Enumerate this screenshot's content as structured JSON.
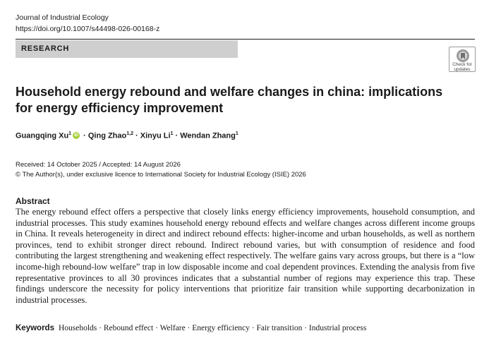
{
  "header": {
    "journal": "Journal of Industrial Ecology",
    "doi": "https://doi.org/10.1007/s44498-026-00168-z",
    "section_label": "RESEARCH",
    "check_updates_line1": "Check for",
    "check_updates_line2": "updates"
  },
  "article": {
    "title": "Household energy rebound and welfare changes in china: implications for energy efficiency improvement",
    "authors": [
      {
        "name": "Guangqing Xu",
        "affiliation": "1"
      },
      {
        "name": "Qing Zhao",
        "affiliation": "1,2"
      },
      {
        "name": "Xinyu Li",
        "affiliation": "1"
      },
      {
        "name": "Wendan Zhang",
        "affiliation": "1"
      }
    ],
    "author_separator": " · ",
    "dates": "Received: 14 October 2025 / Accepted: 14 August 2026",
    "copyright": "© The Author(s), under exclusive licence to International Society for Industrial Ecology (ISIE) 2026"
  },
  "abstract": {
    "heading": "Abstract",
    "text": "The energy rebound effect offers a perspective that closely links energy efficiency improvements, household consumption, and industrial processes. This study examines household energy rebound effects and welfare changes across different income groups in China. It reveals heterogeneity in direct and indirect rebound effects: higher-income and urban households, as well as northern provinces, tend to exhibit stronger direct rebound. Indirect rebound varies, but with consumption of residence and food contributing the largest strengthening and weakening effect respectively. The welfare gains vary across groups, but there is a “low income-high rebound-low welfare” trap in low disposable income and coal dependent provinces. Extending the analysis from five representative provinces to all 30 provinces indicates that a substantial number of regions may experience this trap. These findings underscore the necessity for policy interventions that prioritize fair transition while supporting decarbonization in industrial processes."
  },
  "keywords": {
    "label": "Keywords",
    "items": "Households · Rebound effect · Welfare · Energy efficiency · Fair transition · Industrial process"
  },
  "icons": {
    "orcid": "orcid-icon",
    "check_updates": "check-updates-icon"
  },
  "colors": {
    "section_bar": "#cfcfcf",
    "orcid_green": "#a6ce39"
  }
}
